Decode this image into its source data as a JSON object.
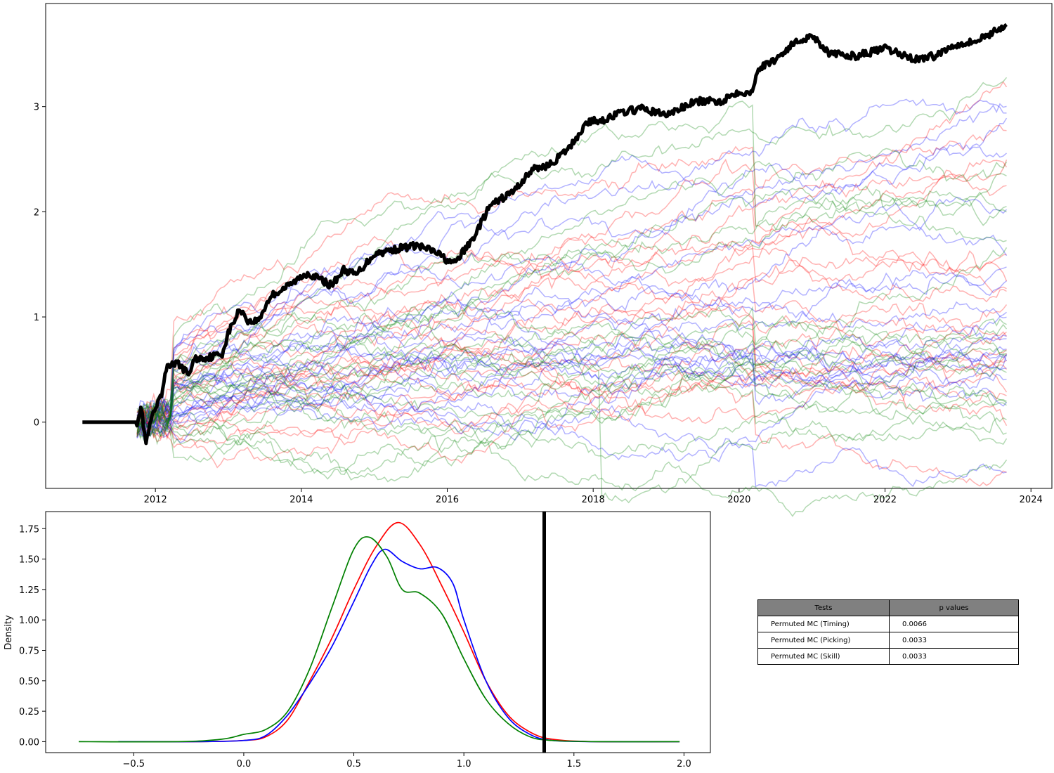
{
  "colors": {
    "timing": "#ff0000",
    "picking": "#0000ff",
    "skill": "#008000",
    "actual": "#000000",
    "table_header": "#808080"
  },
  "chart_data": [
    {
      "type": "line",
      "title": "",
      "xlabel": "",
      "ylabel": "",
      "x_range": [
        "2010-07-01",
        "2024-04-15"
      ],
      "y_range": [
        -0.63,
        3.98
      ],
      "x_ticks": [
        "2012",
        "2014",
        "2016",
        "2018",
        "2020",
        "2022",
        "2024"
      ],
      "y_ticks": [
        "0",
        "1",
        "2",
        "3"
      ],
      "grid": false,
      "legend": "none",
      "simulated_paths": {
        "groups": [
          "timing",
          "picking",
          "skill"
        ],
        "paths_per_group": 20,
        "start": "2011-10-01",
        "end": "2023-09-01",
        "final_range": [
          -0.3,
          2.8
        ],
        "alpha": 0.3
      },
      "series": [
        {
          "color": "#000000",
          "points": [
            [
              "2011-01-01",
              0.0
            ],
            [
              "2011-10-01",
              0.0
            ],
            [
              "2011-10-20",
              0.15
            ],
            [
              "2011-11-15",
              -0.2
            ],
            [
              "2011-12-15",
              0.05
            ],
            [
              "2012-02-01",
              0.25
            ],
            [
              "2012-03-01",
              0.55
            ],
            [
              "2012-05-01",
              0.55
            ],
            [
              "2012-06-15",
              0.45
            ],
            [
              "2012-07-15",
              0.6
            ],
            [
              "2012-10-01",
              0.62
            ],
            [
              "2012-12-01",
              0.65
            ],
            [
              "2013-01-01",
              0.85
            ],
            [
              "2013-03-01",
              1.08
            ],
            [
              "2013-04-15",
              0.95
            ],
            [
              "2013-06-01",
              0.97
            ],
            [
              "2013-08-01",
              1.2
            ],
            [
              "2013-11-01",
              1.3
            ],
            [
              "2014-02-01",
              1.42
            ],
            [
              "2014-06-01",
              1.3
            ],
            [
              "2014-08-01",
              1.45
            ],
            [
              "2014-10-01",
              1.4
            ],
            [
              "2015-01-01",
              1.6
            ],
            [
              "2015-05-01",
              1.65
            ],
            [
              "2015-08-01",
              1.68
            ],
            [
              "2015-11-01",
              1.62
            ],
            [
              "2016-02-01",
              1.5
            ],
            [
              "2016-05-01",
              1.72
            ],
            [
              "2016-08-01",
              2.05
            ],
            [
              "2016-12-01",
              2.2
            ],
            [
              "2017-03-01",
              2.4
            ],
            [
              "2017-06-01",
              2.45
            ],
            [
              "2017-09-01",
              2.6
            ],
            [
              "2017-12-01",
              2.85
            ],
            [
              "2018-03-01",
              2.88
            ],
            [
              "2018-06-01",
              2.95
            ],
            [
              "2018-09-01",
              2.98
            ],
            [
              "2019-01-01",
              2.92
            ],
            [
              "2019-06-01",
              3.05
            ],
            [
              "2019-10-01",
              3.05
            ],
            [
              "2020-01-01",
              3.15
            ],
            [
              "2020-03-01",
              3.12
            ],
            [
              "2020-04-01",
              3.35
            ],
            [
              "2020-07-01",
              3.45
            ],
            [
              "2020-10-01",
              3.6
            ],
            [
              "2021-01-01",
              3.68
            ],
            [
              "2021-04-01",
              3.5
            ],
            [
              "2021-08-01",
              3.48
            ],
            [
              "2022-01-01",
              3.55
            ],
            [
              "2022-06-01",
              3.45
            ],
            [
              "2022-09-01",
              3.48
            ],
            [
              "2023-01-01",
              3.6
            ],
            [
              "2023-04-01",
              3.62
            ],
            [
              "2023-09-01",
              3.78
            ]
          ]
        }
      ]
    },
    {
      "type": "line",
      "title": "",
      "xlabel": "",
      "ylabel": "Density",
      "x_range": [
        -0.9,
        2.12
      ],
      "y_range": [
        -0.09,
        1.89
      ],
      "x_ticks": [
        "−0.5",
        "0.0",
        "0.5",
        "1.0",
        "1.5",
        "2.0"
      ],
      "y_ticks": [
        "0.00",
        "0.25",
        "0.50",
        "0.75",
        "1.00",
        "1.25",
        "1.50",
        "1.75"
      ],
      "grid": false,
      "legend": "none",
      "vertical_line_x": 1.365,
      "series": [
        {
          "color": "#ff0000",
          "points": [
            [
              -0.57,
              0.0
            ],
            [
              -0.2,
              0.0
            ],
            [
              0.0,
              0.01
            ],
            [
              0.1,
              0.04
            ],
            [
              0.2,
              0.18
            ],
            [
              0.3,
              0.5
            ],
            [
              0.4,
              0.85
            ],
            [
              0.5,
              1.25
            ],
            [
              0.6,
              1.6
            ],
            [
              0.7,
              1.8
            ],
            [
              0.8,
              1.62
            ],
            [
              0.9,
              1.28
            ],
            [
              1.0,
              0.9
            ],
            [
              1.1,
              0.5
            ],
            [
              1.2,
              0.22
            ],
            [
              1.3,
              0.08
            ],
            [
              1.4,
              0.02
            ],
            [
              1.6,
              0.0
            ],
            [
              1.98,
              0.0
            ]
          ]
        },
        {
          "color": "#0000ff",
          "points": [
            [
              -0.57,
              0.0
            ],
            [
              -0.2,
              0.0
            ],
            [
              0.0,
              0.01
            ],
            [
              0.1,
              0.05
            ],
            [
              0.2,
              0.22
            ],
            [
              0.3,
              0.48
            ],
            [
              0.4,
              0.78
            ],
            [
              0.5,
              1.15
            ],
            [
              0.58,
              1.45
            ],
            [
              0.64,
              1.58
            ],
            [
              0.72,
              1.48
            ],
            [
              0.8,
              1.42
            ],
            [
              0.88,
              1.43
            ],
            [
              0.95,
              1.3
            ],
            [
              1.0,
              1.0
            ],
            [
              1.1,
              0.5
            ],
            [
              1.2,
              0.2
            ],
            [
              1.3,
              0.06
            ],
            [
              1.4,
              0.01
            ],
            [
              1.6,
              0.0
            ],
            [
              1.98,
              0.0
            ]
          ]
        },
        {
          "color": "#008000",
          "points": [
            [
              -0.75,
              0.0
            ],
            [
              -0.3,
              0.0
            ],
            [
              -0.1,
              0.02
            ],
            [
              0.0,
              0.06
            ],
            [
              0.1,
              0.1
            ],
            [
              0.2,
              0.25
            ],
            [
              0.3,
              0.6
            ],
            [
              0.4,
              1.1
            ],
            [
              0.5,
              1.58
            ],
            [
              0.57,
              1.68
            ],
            [
              0.65,
              1.52
            ],
            [
              0.72,
              1.25
            ],
            [
              0.8,
              1.22
            ],
            [
              0.9,
              1.05
            ],
            [
              1.0,
              0.68
            ],
            [
              1.1,
              0.35
            ],
            [
              1.2,
              0.15
            ],
            [
              1.3,
              0.04
            ],
            [
              1.4,
              0.01
            ],
            [
              1.6,
              0.0
            ],
            [
              1.98,
              0.0
            ]
          ]
        }
      ]
    }
  ],
  "table": {
    "headers": [
      "Tests",
      "p values"
    ],
    "rows": [
      [
        "Permuted MC (Timing)",
        "0.0066"
      ],
      [
        "Permuted MC (Picking)",
        "0.0033"
      ],
      [
        "Permuted MC (Skill)",
        "0.0033"
      ]
    ]
  }
}
